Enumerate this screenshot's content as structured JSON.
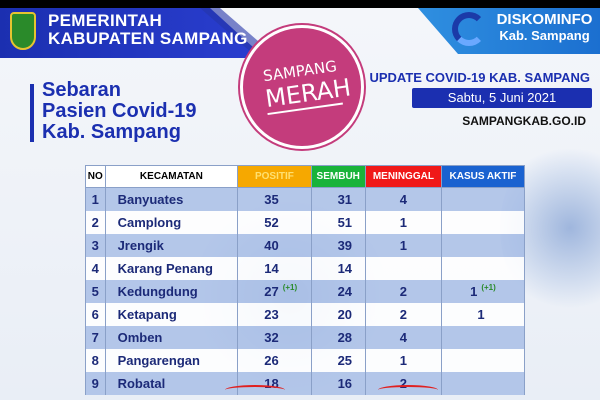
{
  "header": {
    "left_title": [
      "PEMERINTAH",
      "KABUPATEN SAMPANG"
    ],
    "right_title": "DISKOMINFO",
    "right_subtitle": "Kab. Sampang"
  },
  "title": [
    "Sebaran",
    "Pasien Covid-19",
    "Kab. Sampang"
  ],
  "stamp": {
    "line1": "SAMPANG",
    "line2": "MERAH",
    "color": "#c43c7c"
  },
  "update": "UPDATE COVID-19 KAB. SAMPANG",
  "date": "Sabtu, 5 Juni 2021",
  "website": "SAMPANGKAB.GO.ID",
  "table": {
    "headers": [
      {
        "label": "NO",
        "bg": "#ffffff",
        "color": "#000000"
      },
      {
        "label": "KECAMATAN",
        "bg": "#ffffff",
        "color": "#000000"
      },
      {
        "label": "POSITIF",
        "bg": "#f6a800",
        "color": "#ffe070"
      },
      {
        "label": "SEMBUH",
        "bg": "#19b33a",
        "color": "#ffffff"
      },
      {
        "label": "MENINGGAL",
        "bg": "#f01818",
        "color": "#ffffff"
      },
      {
        "label": "KASUS AKTIF",
        "bg": "#1a62d0",
        "color": "#ffffff"
      }
    ],
    "rows": [
      {
        "no": "1",
        "kecamatan": "Banyuates",
        "positif": "35",
        "positif_new": "",
        "sembuh": "31",
        "meninggal": "4",
        "aktif": "",
        "aktif_new": ""
      },
      {
        "no": "2",
        "kecamatan": "Camplong",
        "positif": "52",
        "positif_new": "",
        "sembuh": "51",
        "meninggal": "1",
        "aktif": "",
        "aktif_new": ""
      },
      {
        "no": "3",
        "kecamatan": "Jrengik",
        "positif": "40",
        "positif_new": "",
        "sembuh": "39",
        "meninggal": "1",
        "aktif": "",
        "aktif_new": ""
      },
      {
        "no": "4",
        "kecamatan": "Karang Penang",
        "positif": "14",
        "positif_new": "",
        "sembuh": "14",
        "meninggal": "",
        "aktif": "",
        "aktif_new": ""
      },
      {
        "no": "5",
        "kecamatan": "Kedungdung",
        "positif": "27",
        "positif_new": "(+1)",
        "sembuh": "24",
        "meninggal": "2",
        "aktif": "1",
        "aktif_new": "(+1)"
      },
      {
        "no": "6",
        "kecamatan": "Ketapang",
        "positif": "23",
        "positif_new": "",
        "sembuh": "20",
        "meninggal": "2",
        "aktif": "1",
        "aktif_new": ""
      },
      {
        "no": "7",
        "kecamatan": "Omben",
        "positif": "32",
        "positif_new": "",
        "sembuh": "28",
        "meninggal": "4",
        "aktif": "",
        "aktif_new": ""
      },
      {
        "no": "8",
        "kecamatan": "Pangarengan",
        "positif": "26",
        "positif_new": "",
        "sembuh": "25",
        "meninggal": "1",
        "aktif": "",
        "aktif_new": ""
      },
      {
        "no": "9",
        "kecamatan": "Robatal",
        "positif": "18",
        "positif_new": "",
        "sembuh": "16",
        "meninggal": "2",
        "aktif": "",
        "aktif_new": ""
      }
    ]
  }
}
